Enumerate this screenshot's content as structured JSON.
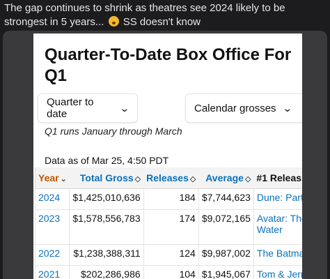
{
  "post": {
    "text_before": "The gap continues to shrink as theatres see 2024 likely to be strongest in 5 years...",
    "emoji_icon": "shushing-face",
    "text_after": "SS doesn't know"
  },
  "page": {
    "title": "Quarter-To-Date Box Office For Q1",
    "dropdown_quarter": "Quarter to date",
    "dropdown_calendar": "Calendar grosses",
    "note": "Q1 runs January through March",
    "as_of": "Data as of Mar 25, 4:50 PDT"
  },
  "table": {
    "headers": {
      "year": "Year",
      "gross": "Total Gross",
      "releases": "Releases",
      "average": "Average",
      "first": "#1 Releas"
    },
    "rows": [
      {
        "year": "2024",
        "gross": "$1,425,010,636",
        "releases": "184",
        "average": "$7,744,623",
        "first": "Dune: Part"
      },
      {
        "year": "2023",
        "gross": "$1,578,556,783",
        "releases": "174",
        "average": "$9,072,165",
        "first": "Avatar: The Water"
      },
      {
        "year": "2022",
        "gross": "$1,238,388,311",
        "releases": "124",
        "average": "$9,987,002",
        "first": "The Batma"
      },
      {
        "year": "2021",
        "gross": "$202,286,986",
        "releases": "104",
        "average": "$1,945,067",
        "first": "Tom & Jerr"
      }
    ]
  },
  "colors": {
    "link": "#0a70b8",
    "sorted_header": "#c45500"
  }
}
